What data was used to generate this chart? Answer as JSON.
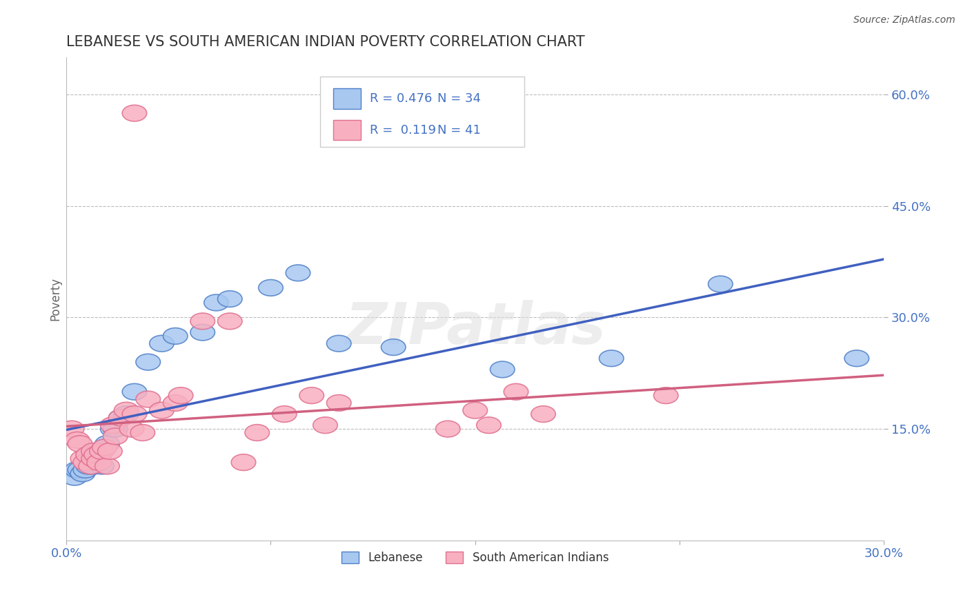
{
  "title": "LEBANESE VS SOUTH AMERICAN INDIAN POVERTY CORRELATION CHART",
  "source": "Source: ZipAtlas.com",
  "ylabel": "Poverty",
  "xlim": [
    0.0,
    0.3
  ],
  "ylim": [
    0.0,
    0.65
  ],
  "yticks": [
    0.15,
    0.3,
    0.45,
    0.6
  ],
  "ytick_labels": [
    "15.0%",
    "30.0%",
    "45.0%",
    "60.0%"
  ],
  "xtick_labels": [
    "0.0%",
    "30.0%"
  ],
  "xtick_positions": [
    0.0,
    0.3
  ],
  "legend_r1": "R = 0.476",
  "legend_n1": "N = 34",
  "legend_r2": "R =  0.119",
  "legend_n2": "N = 41",
  "blue_fill": "#A8C8F0",
  "blue_edge": "#5080C8",
  "pink_fill": "#F8B0C0",
  "pink_edge": "#E07090",
  "blue_line_color": "#4060C0",
  "pink_line_color": "#D06080",
  "text_blue": "#4472C4",
  "watermark": "ZIPatlas",
  "lebanese_x": [
    0.003,
    0.004,
    0.005,
    0.006,
    0.007,
    0.008,
    0.008,
    0.009,
    0.01,
    0.01,
    0.011,
    0.012,
    0.013,
    0.014,
    0.015,
    0.017,
    0.018,
    0.02,
    0.022,
    0.025,
    0.03,
    0.035,
    0.04,
    0.05,
    0.055,
    0.06,
    0.075,
    0.085,
    0.1,
    0.12,
    0.16,
    0.2,
    0.24,
    0.29
  ],
  "lebanese_y": [
    0.085,
    0.095,
    0.095,
    0.09,
    0.095,
    0.1,
    0.115,
    0.11,
    0.1,
    0.115,
    0.12,
    0.115,
    0.1,
    0.125,
    0.13,
    0.15,
    0.15,
    0.165,
    0.17,
    0.2,
    0.24,
    0.265,
    0.275,
    0.28,
    0.32,
    0.325,
    0.34,
    0.36,
    0.265,
    0.26,
    0.23,
    0.245,
    0.345,
    0.245
  ],
  "sai_x": [
    0.002,
    0.004,
    0.005,
    0.006,
    0.007,
    0.008,
    0.009,
    0.01,
    0.01,
    0.011,
    0.012,
    0.013,
    0.014,
    0.015,
    0.016,
    0.017,
    0.018,
    0.02,
    0.022,
    0.024,
    0.025,
    0.028,
    0.03,
    0.035,
    0.04,
    0.042,
    0.05,
    0.06,
    0.065,
    0.07,
    0.08,
    0.09,
    0.095,
    0.1,
    0.14,
    0.15,
    0.155,
    0.165,
    0.175,
    0.22,
    0.025
  ],
  "sai_y": [
    0.15,
    0.135,
    0.13,
    0.11,
    0.105,
    0.115,
    0.1,
    0.11,
    0.12,
    0.115,
    0.105,
    0.12,
    0.125,
    0.1,
    0.12,
    0.155,
    0.14,
    0.165,
    0.175,
    0.15,
    0.17,
    0.145,
    0.19,
    0.175,
    0.185,
    0.195,
    0.295,
    0.295,
    0.105,
    0.145,
    0.17,
    0.195,
    0.155,
    0.185,
    0.15,
    0.175,
    0.155,
    0.2,
    0.17,
    0.195,
    0.575
  ],
  "background_color": "#FFFFFF",
  "grid_color": "#BBBBBB",
  "title_color": "#333333"
}
